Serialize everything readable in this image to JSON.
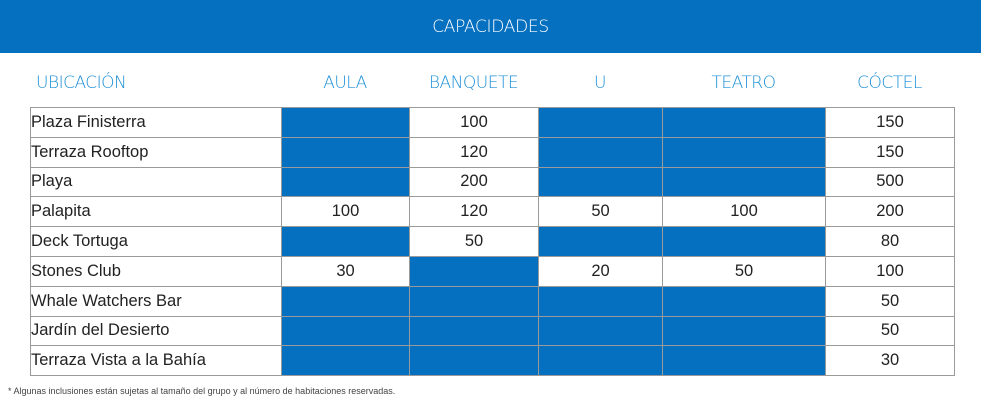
{
  "title": "CAPACIDADES",
  "columns": [
    "UBICACIÓN",
    "AULA",
    "BANQUETE",
    "U",
    "TEATRO",
    "CÓCTEL"
  ],
  "rows": [
    {
      "name": "Plaza Finisterra",
      "aula": "",
      "banquete": "100",
      "u": "",
      "teatro": "",
      "coctel": "150"
    },
    {
      "name": "Terraza Rooftop",
      "aula": "",
      "banquete": "120",
      "u": "",
      "teatro": "",
      "coctel": "150"
    },
    {
      "name": "Playa",
      "aula": "",
      "banquete": "200",
      "u": "",
      "teatro": "",
      "coctel": "500"
    },
    {
      "name": "Palapita",
      "aula": "100",
      "banquete": "120",
      "u": "50",
      "teatro": "100",
      "coctel": "200"
    },
    {
      "name": "Deck Tortuga",
      "aula": "",
      "banquete": "50",
      "u": "",
      "teatro": "",
      "coctel": "80"
    },
    {
      "name": "Stones Club",
      "aula": "30",
      "banquete": "",
      "u": "20",
      "teatro": "50",
      "coctel": "100"
    },
    {
      "name": "Whale Watchers Bar",
      "aula": "",
      "banquete": "",
      "u": "",
      "teatro": "",
      "coctel": "50"
    },
    {
      "name": "Jardín del Desierto",
      "aula": "",
      "banquete": "",
      "u": "",
      "teatro": "",
      "coctel": "50"
    },
    {
      "name": "Terraza Vista a la Bahía",
      "aula": "",
      "banquete": "",
      "u": "",
      "teatro": "",
      "coctel": "30"
    }
  ],
  "footnote": "* Algunas inclusiones están sujetas al tamaño del grupo y al número de habitaciones reservadas.",
  "colors": {
    "accent": "#0670c0",
    "header_text": "#1e90d6"
  }
}
